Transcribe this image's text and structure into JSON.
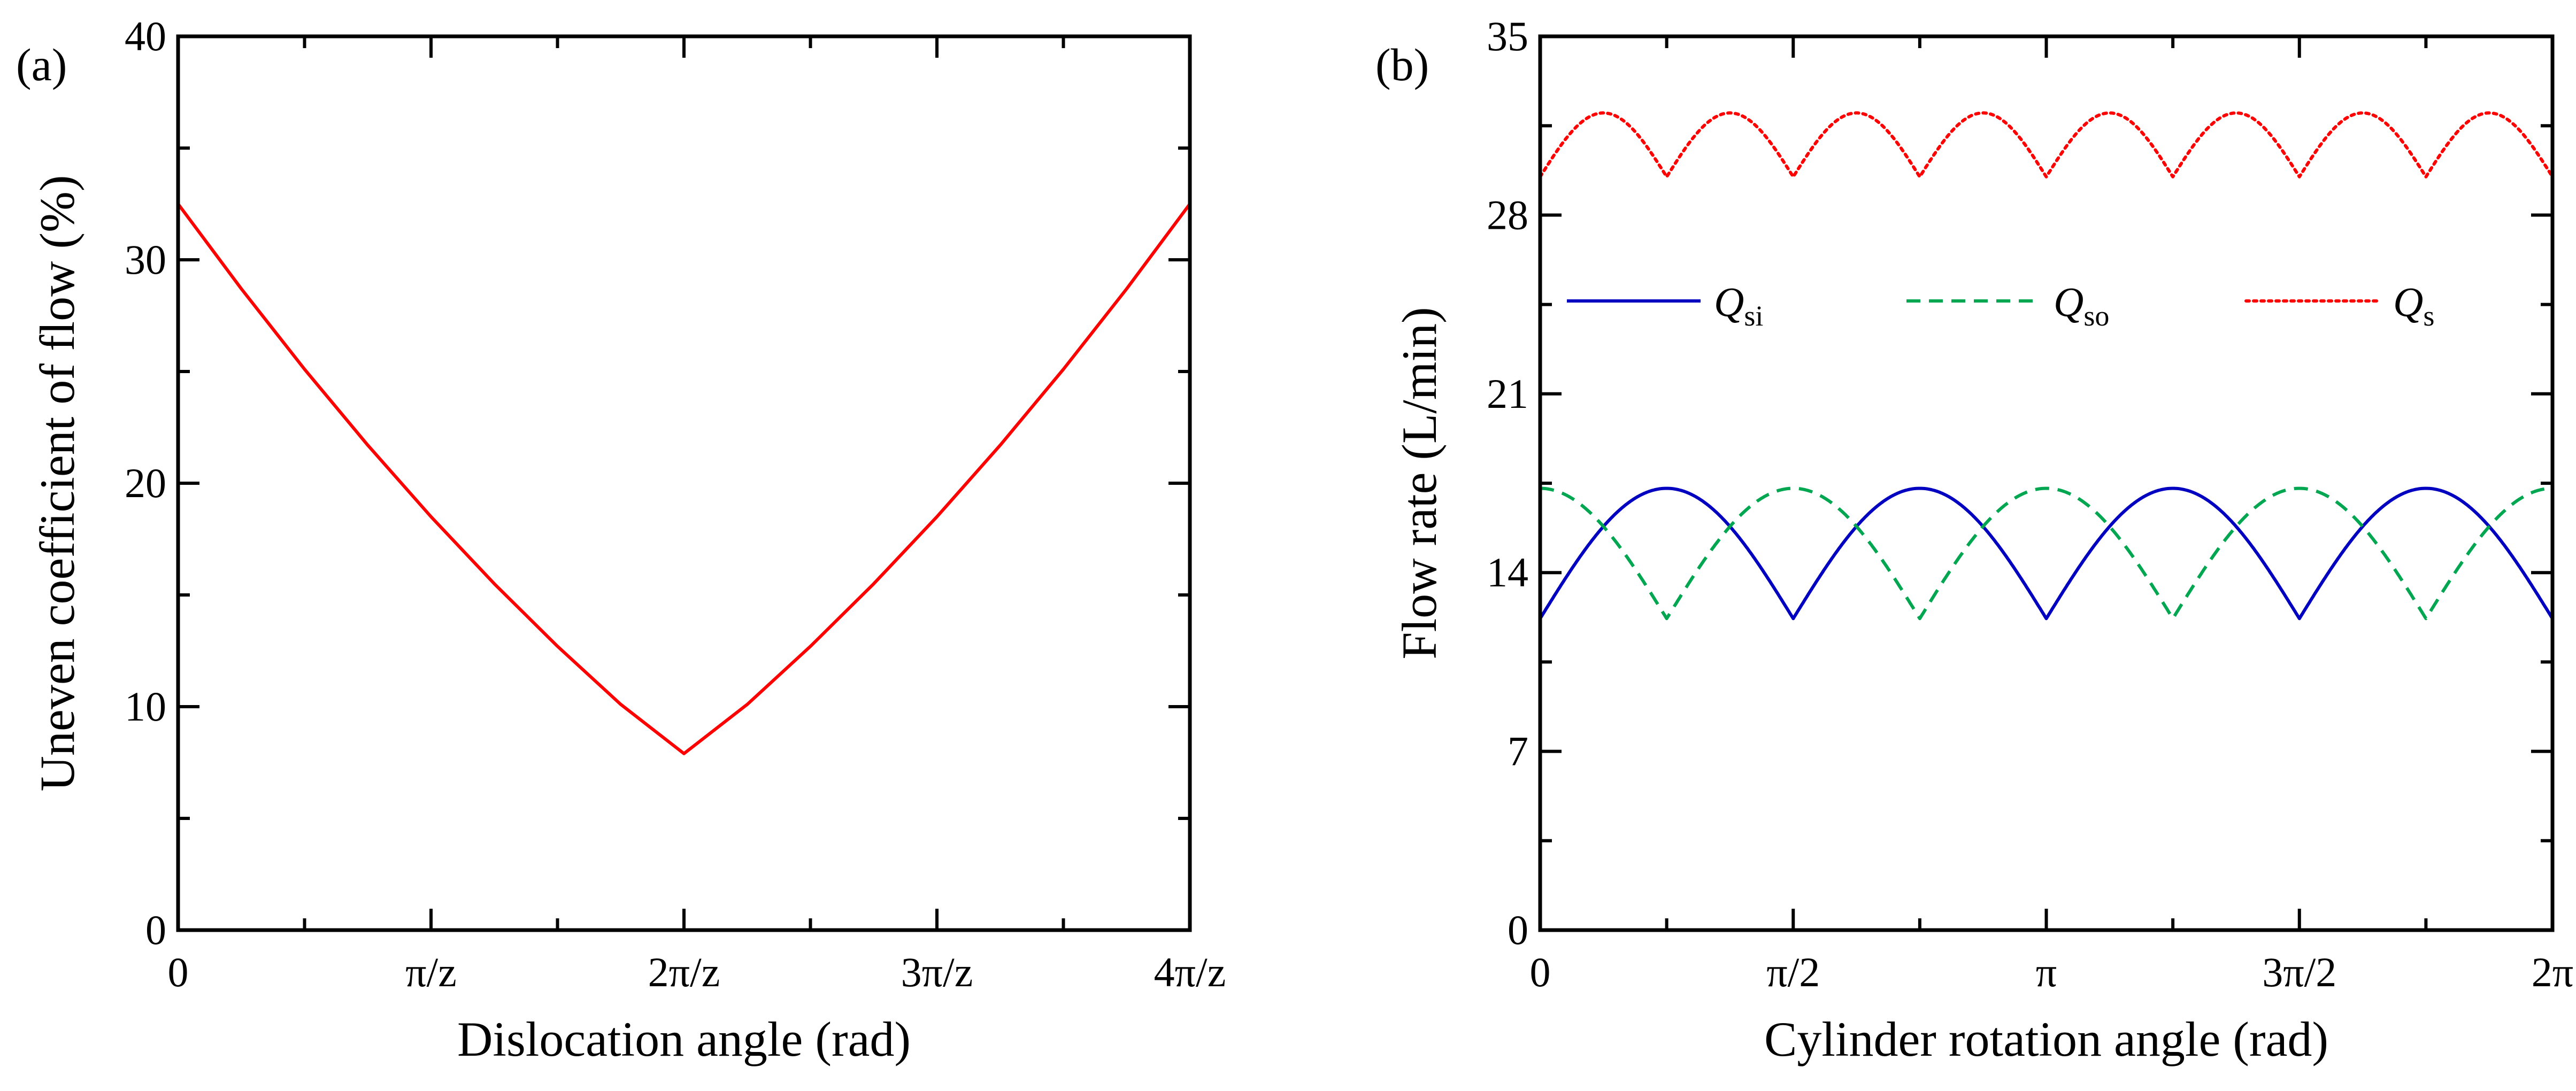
{
  "chart_data": [
    {
      "panel": "(a)",
      "type": "line",
      "title": "",
      "xlabel": "Dislocation angle (rad)",
      "ylabel": "Uneven coefficient of flow (%)",
      "xlim": [
        0,
        4
      ],
      "ylim": [
        0,
        40
      ],
      "x_unit": "π/z",
      "xticks": [
        0,
        1,
        2,
        3,
        4
      ],
      "xtick_labels": [
        "0",
        "π/z",
        "2π/z",
        "3π/z",
        "4π/z"
      ],
      "xminor": [
        0.5,
        1.5,
        2.5,
        3.5
      ],
      "yticks": [
        0,
        10,
        20,
        30,
        40
      ],
      "ytick_labels": [
        "0",
        "10",
        "20",
        "30",
        "40"
      ],
      "yminor": [
        5,
        15,
        25,
        35
      ],
      "grid": false,
      "series": [
        {
          "name": "Uneven coefficient",
          "color": "#ff0000",
          "style": "solid",
          "x": [
            0,
            0.25,
            0.5,
            0.75,
            1.0,
            1.25,
            1.5,
            1.75,
            2.0,
            2.25,
            2.5,
            2.75,
            3.0,
            3.25,
            3.5,
            3.75,
            4.0
          ],
          "y": [
            32.5,
            28.7,
            25.1,
            21.7,
            18.5,
            15.5,
            12.7,
            10.1,
            7.9,
            10.1,
            12.7,
            15.5,
            18.5,
            21.7,
            25.1,
            28.7,
            32.5
          ]
        }
      ]
    },
    {
      "panel": "(b)",
      "type": "line",
      "title": "",
      "xlabel": "Cylinder rotation angle (rad)",
      "ylabel": "Flow rate (L/min)",
      "xlim": [
        0,
        6.2832
      ],
      "ylim": [
        0,
        35
      ],
      "xticks": [
        0,
        1.5708,
        3.1416,
        4.7124,
        6.2832
      ],
      "xtick_labels": [
        "0",
        "π/2",
        "π",
        "3π/2",
        "2π"
      ],
      "xminor": [
        0.7854,
        2.3562,
        3.927,
        5.4978
      ],
      "yticks": [
        0,
        7,
        14,
        21,
        28,
        35
      ],
      "ytick_labels": [
        "0",
        "7",
        "14",
        "21",
        "28",
        "35"
      ],
      "yminor": [
        3.5,
        10.5,
        17.5,
        24.5,
        31.5
      ],
      "grid": false,
      "legend_position": "upper-middle",
      "series": [
        {
          "name": "Qsi",
          "base": "Q",
          "sub": "si",
          "color": "#0000c0",
          "style": "solid",
          "min": 12.2,
          "max": 17.3,
          "periods": 4,
          "phase": 0
        },
        {
          "name": "Qso",
          "base": "Q",
          "sub": "so",
          "color": "#00a650",
          "style": "dashed",
          "min": 12.2,
          "max": 17.3,
          "periods": 4,
          "phase": 0.5
        },
        {
          "name": "Qs",
          "base": "Q",
          "sub": "s",
          "color": "#ff0000",
          "style": "dotted",
          "min": 29.5,
          "max": 32.0,
          "periods": 8,
          "phase": 0
        }
      ]
    }
  ]
}
